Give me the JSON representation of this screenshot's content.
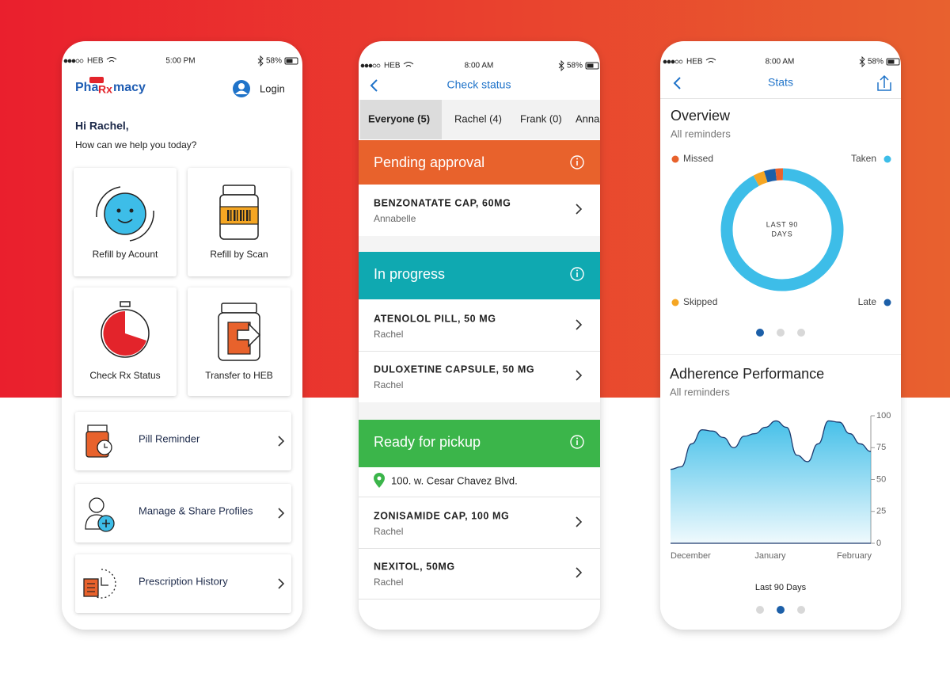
{
  "home": {
    "status": {
      "carrier": "HEB",
      "time": "5:00 PM",
      "battery": "58%"
    },
    "logo": {
      "badge": "HEB",
      "parts": [
        "Pha",
        "Rx",
        "macy"
      ]
    },
    "login": "Login",
    "greeting": "Hi Rachel,",
    "prompt": "How can we help you today?",
    "tiles": [
      "Refill by Acount",
      "Refill by Scan",
      "Check Rx Status",
      "Transfer to HEB"
    ],
    "menu": [
      "Pill Reminder",
      "Manage & Share Profiles",
      "Prescription History"
    ]
  },
  "check_status": {
    "status": {
      "carrier": "HEB",
      "time": "8:00 AM",
      "battery": "58%"
    },
    "title": "Check status",
    "tabs": [
      "Everyone (5)",
      "Rachel (4)",
      "Frank (0)",
      "Anna"
    ],
    "sections": [
      {
        "title": "Pending approval",
        "color": "#e8622c",
        "items": [
          {
            "name": "BENZONATATE CAP, 60MG",
            "patient": "Annabelle"
          }
        ]
      },
      {
        "title": "In progress",
        "color": "#0fa9b1",
        "items": [
          {
            "name": "ATENOLOL PILL, 50 MG",
            "patient": "Rachel"
          },
          {
            "name": "DULOXETINE CAPSULE, 50 MG",
            "patient": "Rachel"
          }
        ]
      },
      {
        "title": "Ready for pickup",
        "color": "#3bb54a",
        "location": "100. w. Cesar Chavez Blvd.",
        "items": [
          {
            "name": "ZONISAMIDE CAP, 100 MG",
            "patient": "Rachel"
          },
          {
            "name": "NEXITOL, 50MG",
            "patient": "Rachel"
          }
        ]
      }
    ]
  },
  "stats": {
    "status": {
      "carrier": "HEB",
      "time": "8:00 AM",
      "battery": "58%"
    },
    "title": "Stats",
    "overview": {
      "type": "donut",
      "title": "Overview",
      "subtitle": "All reminders",
      "center_label": [
        "LAST 90",
        "DAYS"
      ],
      "categories": [
        "Skipped",
        "Late",
        "Missed",
        "Taken"
      ],
      "values": [
        3,
        3,
        2,
        92
      ],
      "colors": [
        "#f5a623",
        "#1c5fa8",
        "#e8622c",
        "#3dbde8"
      ]
    },
    "adherence": {
      "type": "area",
      "title": "Adherence Performance",
      "subtitle": "All reminders",
      "x_labels": [
        "December",
        "January",
        "February"
      ],
      "values": [
        58,
        60,
        78,
        89,
        88,
        83,
        75,
        84,
        86,
        91,
        96,
        91,
        69,
        64,
        78,
        96,
        95,
        86,
        78,
        72
      ],
      "ylim": [
        0,
        100
      ],
      "yticks": [
        0,
        25,
        50,
        75,
        100
      ],
      "color": "#3dbde8",
      "caption": "Last 90 Days"
    }
  }
}
